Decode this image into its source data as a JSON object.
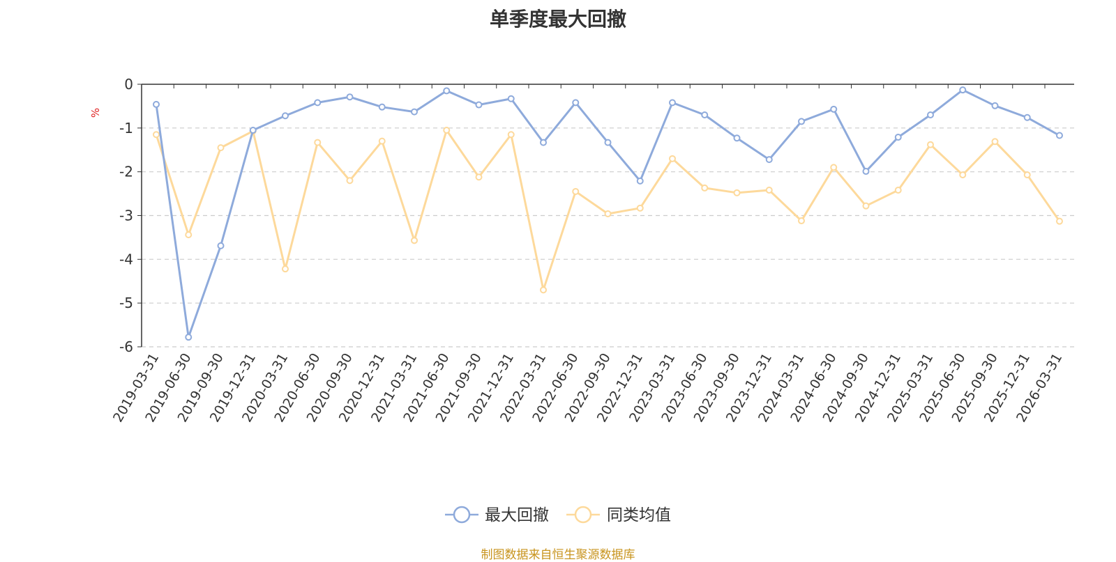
{
  "chart_data": {
    "type": "line",
    "title": "单季度最大回撤",
    "ylabel": "%",
    "xlabel": "",
    "ylim": [
      -6,
      0
    ],
    "yticks": [
      0,
      -1,
      -2,
      -3,
      -4,
      -5,
      -6
    ],
    "grid": true,
    "legend_position": "bottom",
    "categories": [
      "2019-03-31",
      "2019-06-30",
      "2019-09-30",
      "2019-12-31",
      "2020-03-31",
      "2020-06-30",
      "2020-09-30",
      "2020-12-31",
      "2021-03-31",
      "2021-06-30",
      "2021-09-30",
      "2021-12-31",
      "2022-03-31",
      "2022-06-30",
      "2022-09-30",
      "2022-12-31",
      "2023-03-31",
      "2023-06-30",
      "2023-09-30",
      "2023-12-31",
      "2024-03-31",
      "2024-06-30",
      "2024-09-30",
      "2024-12-31",
      "2025-03-31",
      "2025-06-30",
      "2025-09-30",
      "2025-12-31",
      "2026-03-31"
    ],
    "series": [
      {
        "name": "最大回撤",
        "color": "#8eaadb",
        "values": [
          -0.46,
          -5.78,
          -3.69,
          -1.05,
          -0.72,
          -0.42,
          -0.29,
          -0.52,
          -0.63,
          -0.15,
          -0.47,
          -0.33,
          -1.33,
          -0.42,
          -1.33,
          -2.21,
          -0.42,
          -0.7,
          -1.23,
          -1.72,
          -0.85,
          -0.57,
          -1.99,
          -1.21,
          -0.7,
          -0.13,
          -0.49,
          -0.76,
          -1.17
        ]
      },
      {
        "name": "同类均值",
        "color": "#fdd99b",
        "values": [
          -1.15,
          -3.44,
          -1.45,
          -1.07,
          -4.22,
          -1.33,
          -2.2,
          -1.3,
          -3.57,
          -1.05,
          -2.12,
          -1.15,
          -4.7,
          -2.45,
          -2.96,
          -2.83,
          -1.7,
          -2.37,
          -2.48,
          -2.42,
          -3.12,
          -1.9,
          -2.78,
          -2.42,
          -1.38,
          -2.07,
          -1.31,
          -2.07,
          -3.13
        ]
      }
    ]
  },
  "footer": {
    "source": "制图数据来自恒生聚源数据库"
  }
}
